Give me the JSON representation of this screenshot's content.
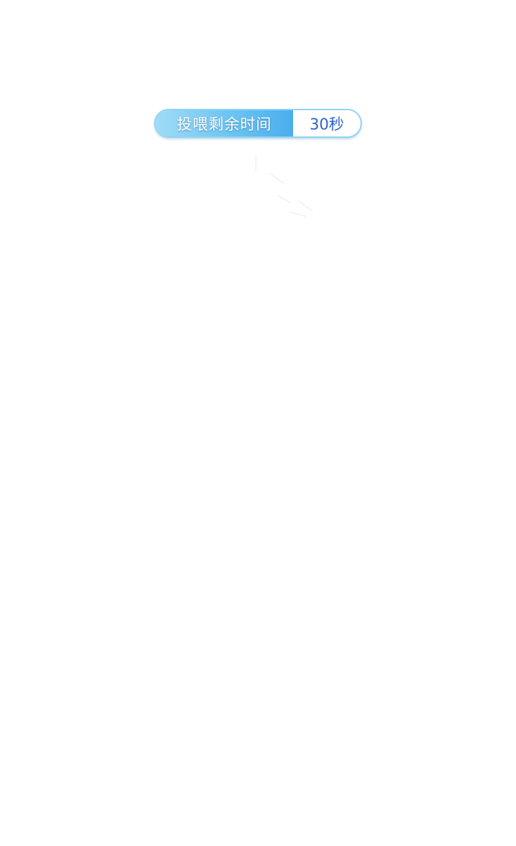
{
  "feeding_timer": {
    "label": "投喂剩余时间",
    "value": "30秒"
  },
  "colors": {
    "label_gradient_start": "#9fdcf7",
    "label_gradient_end": "#4aaeee",
    "value_text": "#2a63d8",
    "border": "#8fd3f4",
    "background": "#ffffff"
  },
  "icons": {
    "loading": "loading-spinner-icon"
  }
}
